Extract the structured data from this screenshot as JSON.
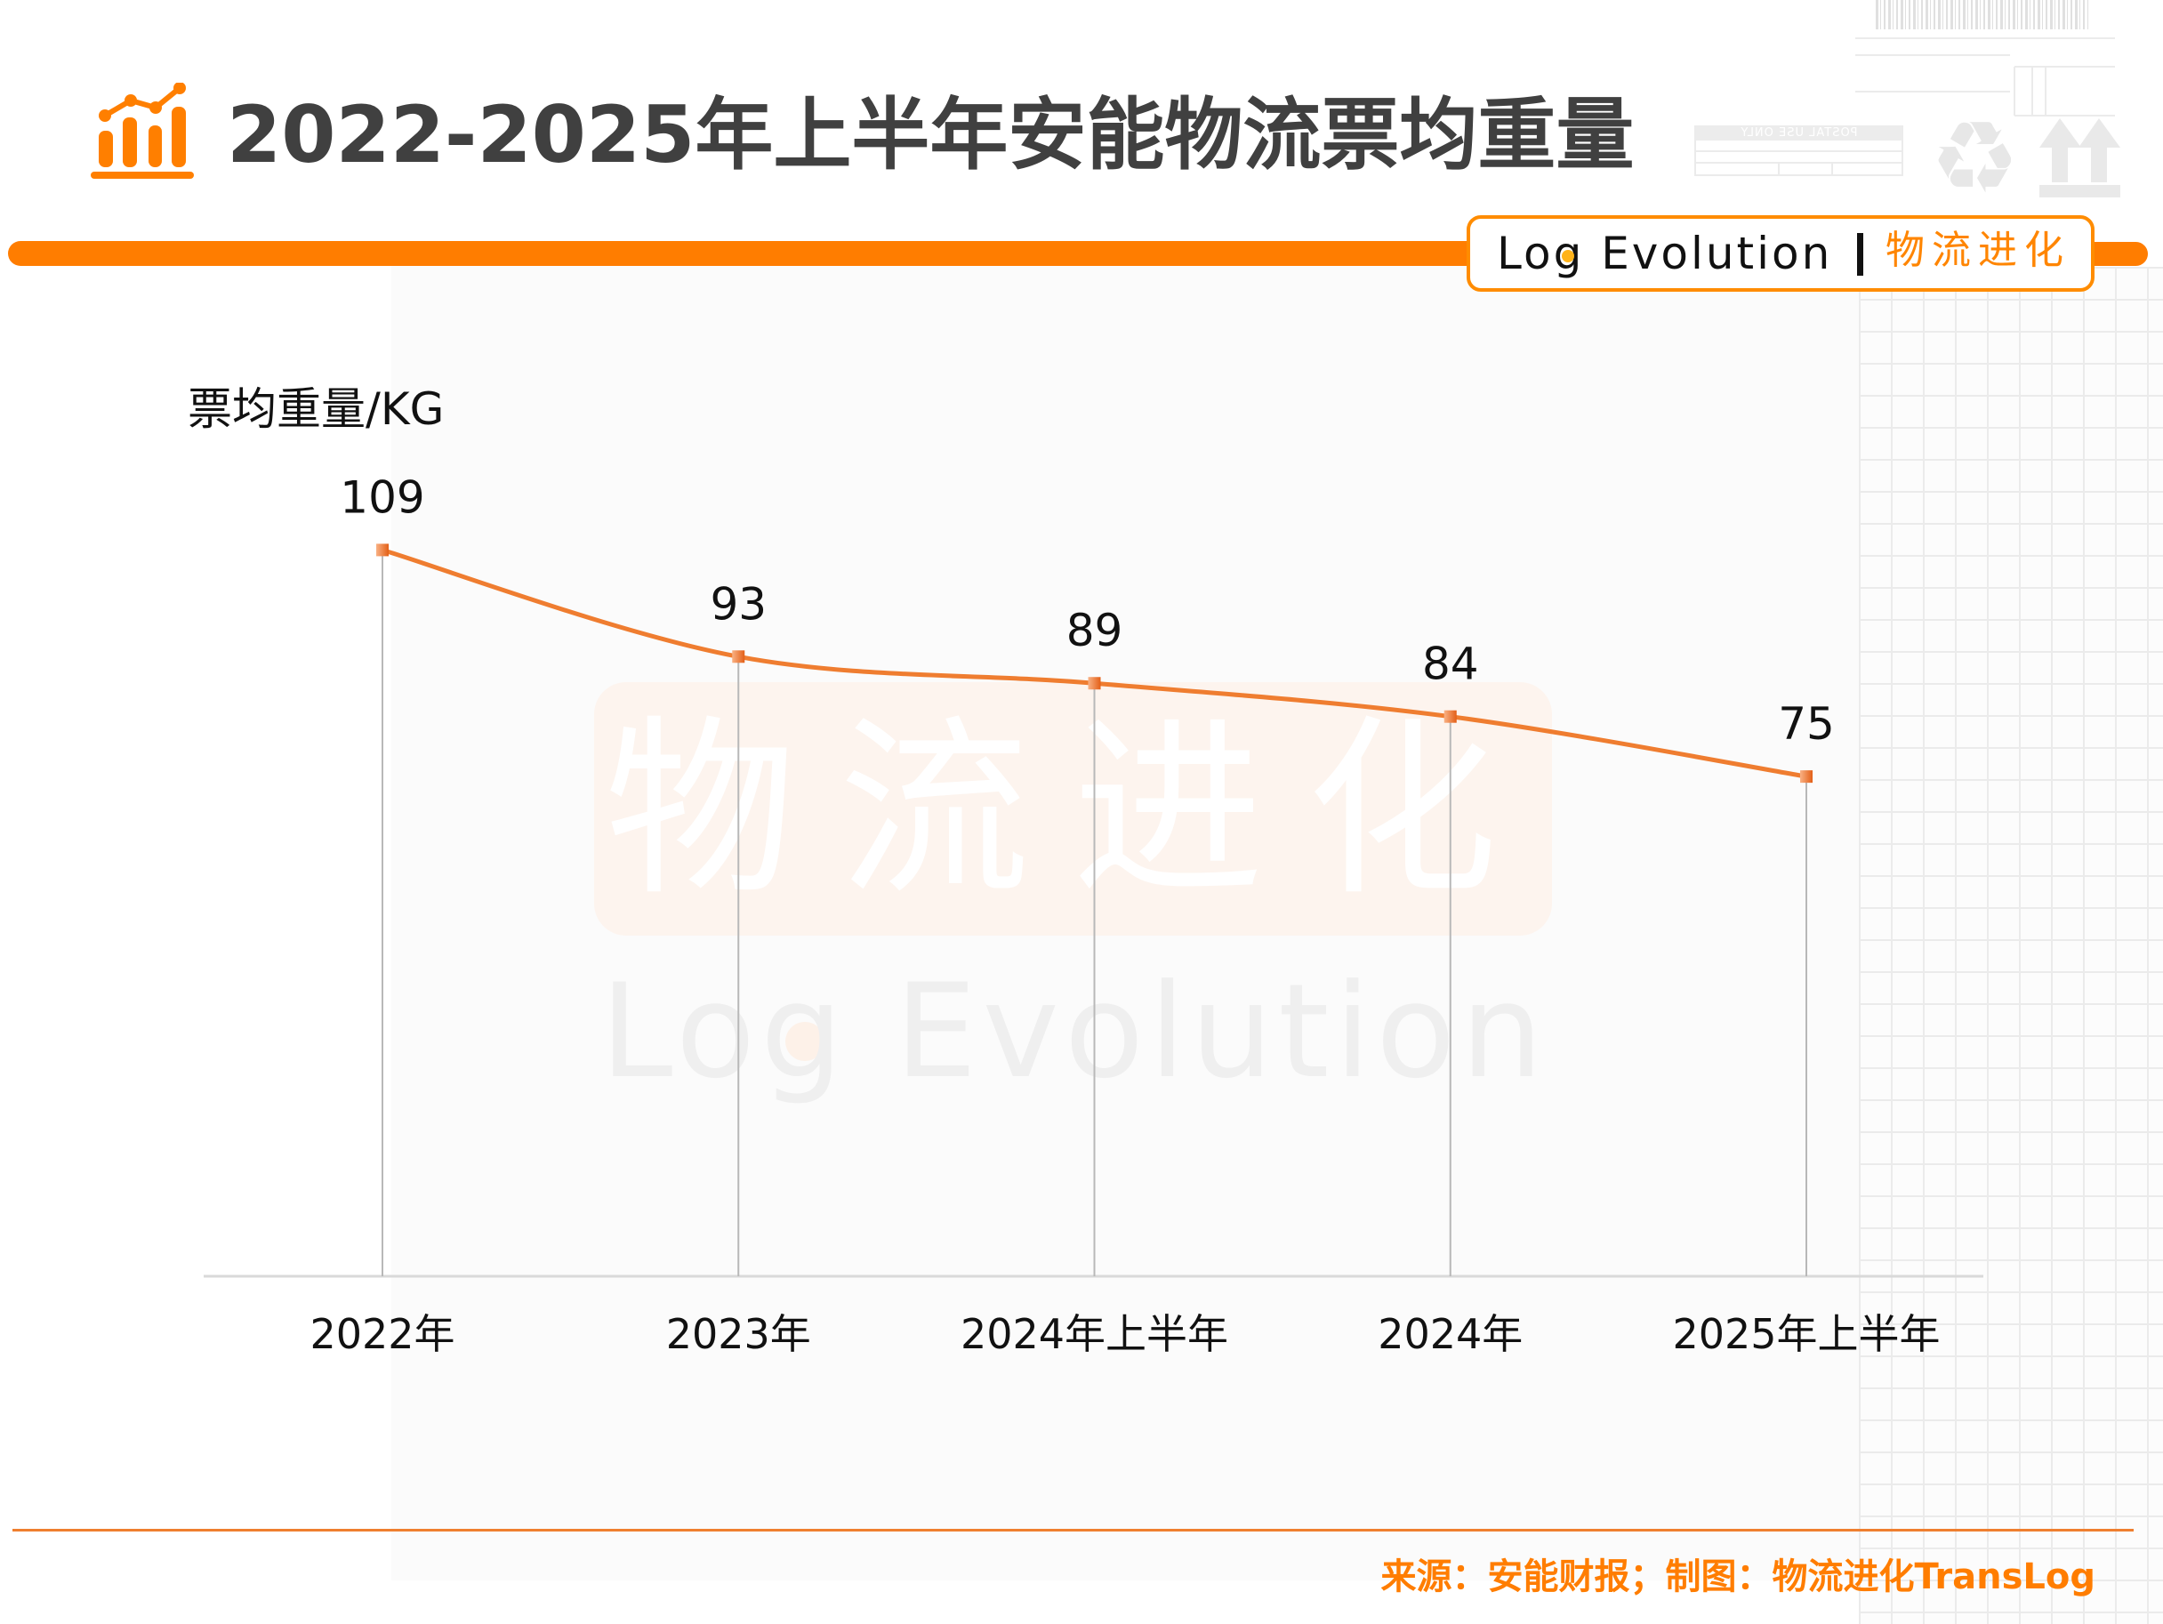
{
  "header": {
    "icon": "bar-line-chart-icon"
  },
  "brand": {
    "name_en": "Log Evolution",
    "name_cn": "物流进化"
  },
  "watermark": {
    "cn": "物流进化",
    "en": "Log Evolution"
  },
  "decor": {
    "postal_label": "POSTAL USE ONLY",
    "recycle_icon": "♻"
  },
  "footer": {
    "source": "来源：安能财报；制图：物流进化TransLog"
  },
  "colors": {
    "accent": "#ff7d00",
    "line": "#ef7d30",
    "title": "#404040",
    "text": "#111111"
  },
  "chart_data": {
    "type": "line",
    "title": "2022-2025年上半年安能物流票均重量",
    "xlabel": "",
    "ylabel": "票均重量/KG",
    "categories": [
      "2022年",
      "2023年",
      "2024年上半年",
      "2024年",
      "2025年上半年"
    ],
    "series": [
      {
        "name": "票均重量",
        "values": [
          109,
          93,
          89,
          84,
          75
        ]
      }
    ],
    "data_labels": [
      "109",
      "93",
      "89",
      "84",
      "75"
    ],
    "ylim": [
      0,
      120
    ],
    "grid": false,
    "legend": "none",
    "smooth": true,
    "drop_lines": true
  }
}
